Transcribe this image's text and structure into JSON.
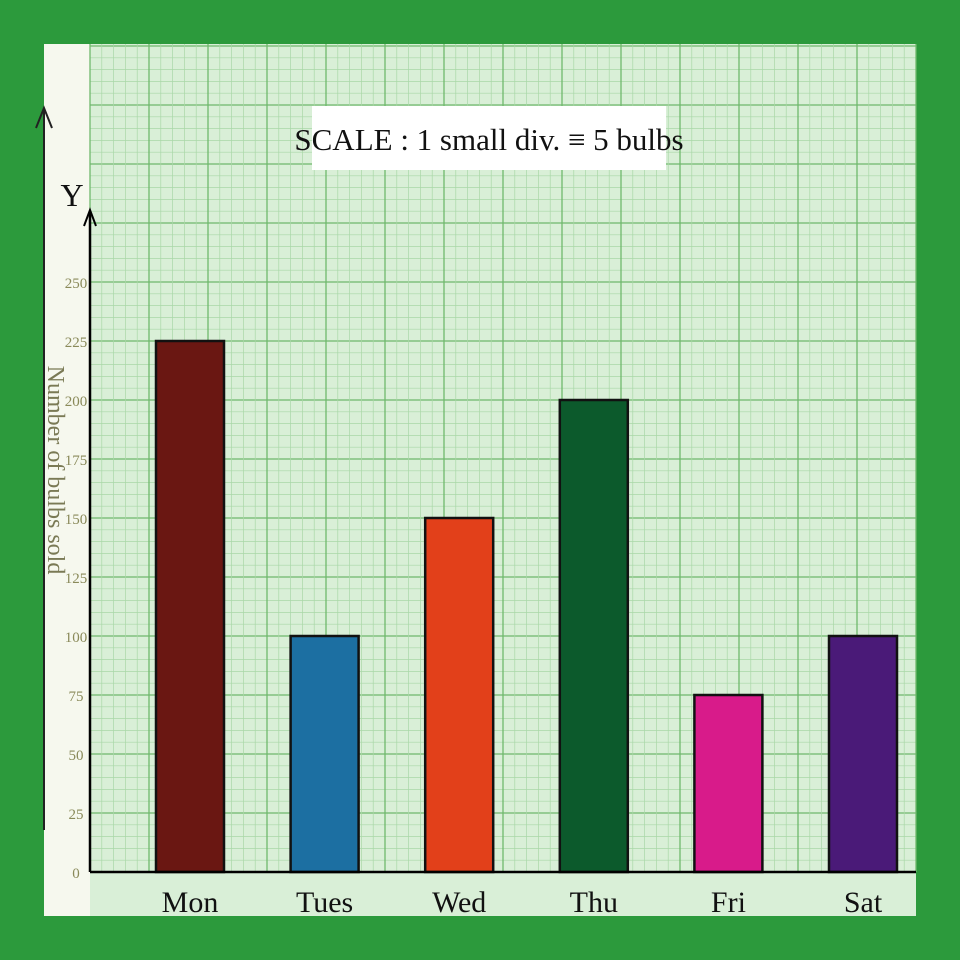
{
  "chart_data": {
    "type": "bar",
    "title": "SCALE : 1 small div. ≡ 5 bulbs",
    "axis_letter": "Y",
    "xlabel": "",
    "ylabel": "Number of bulbs sold",
    "categories": [
      "Mon",
      "Tues",
      "Wed",
      "Thu",
      "Fri",
      "Sat"
    ],
    "values": [
      225,
      100,
      150,
      200,
      75,
      100
    ],
    "yticks": [
      0,
      25,
      50,
      75,
      100,
      125,
      150,
      175,
      200,
      225,
      250
    ],
    "ylim": [
      0,
      250
    ],
    "grid": true,
    "legend": "none",
    "colors": [
      "#6a1712",
      "#1c6fa2",
      "#e2401a",
      "#0c5a2c",
      "#d81b8a",
      "#4a1a78"
    ]
  },
  "theme": {
    "frame": "#2c9a3c",
    "paper": "#d9efd7",
    "grid_minor": "#a9d7a7",
    "grid_major": "#6fb86c",
    "axis": "#000000",
    "tick_label": "#8a8a5a"
  }
}
